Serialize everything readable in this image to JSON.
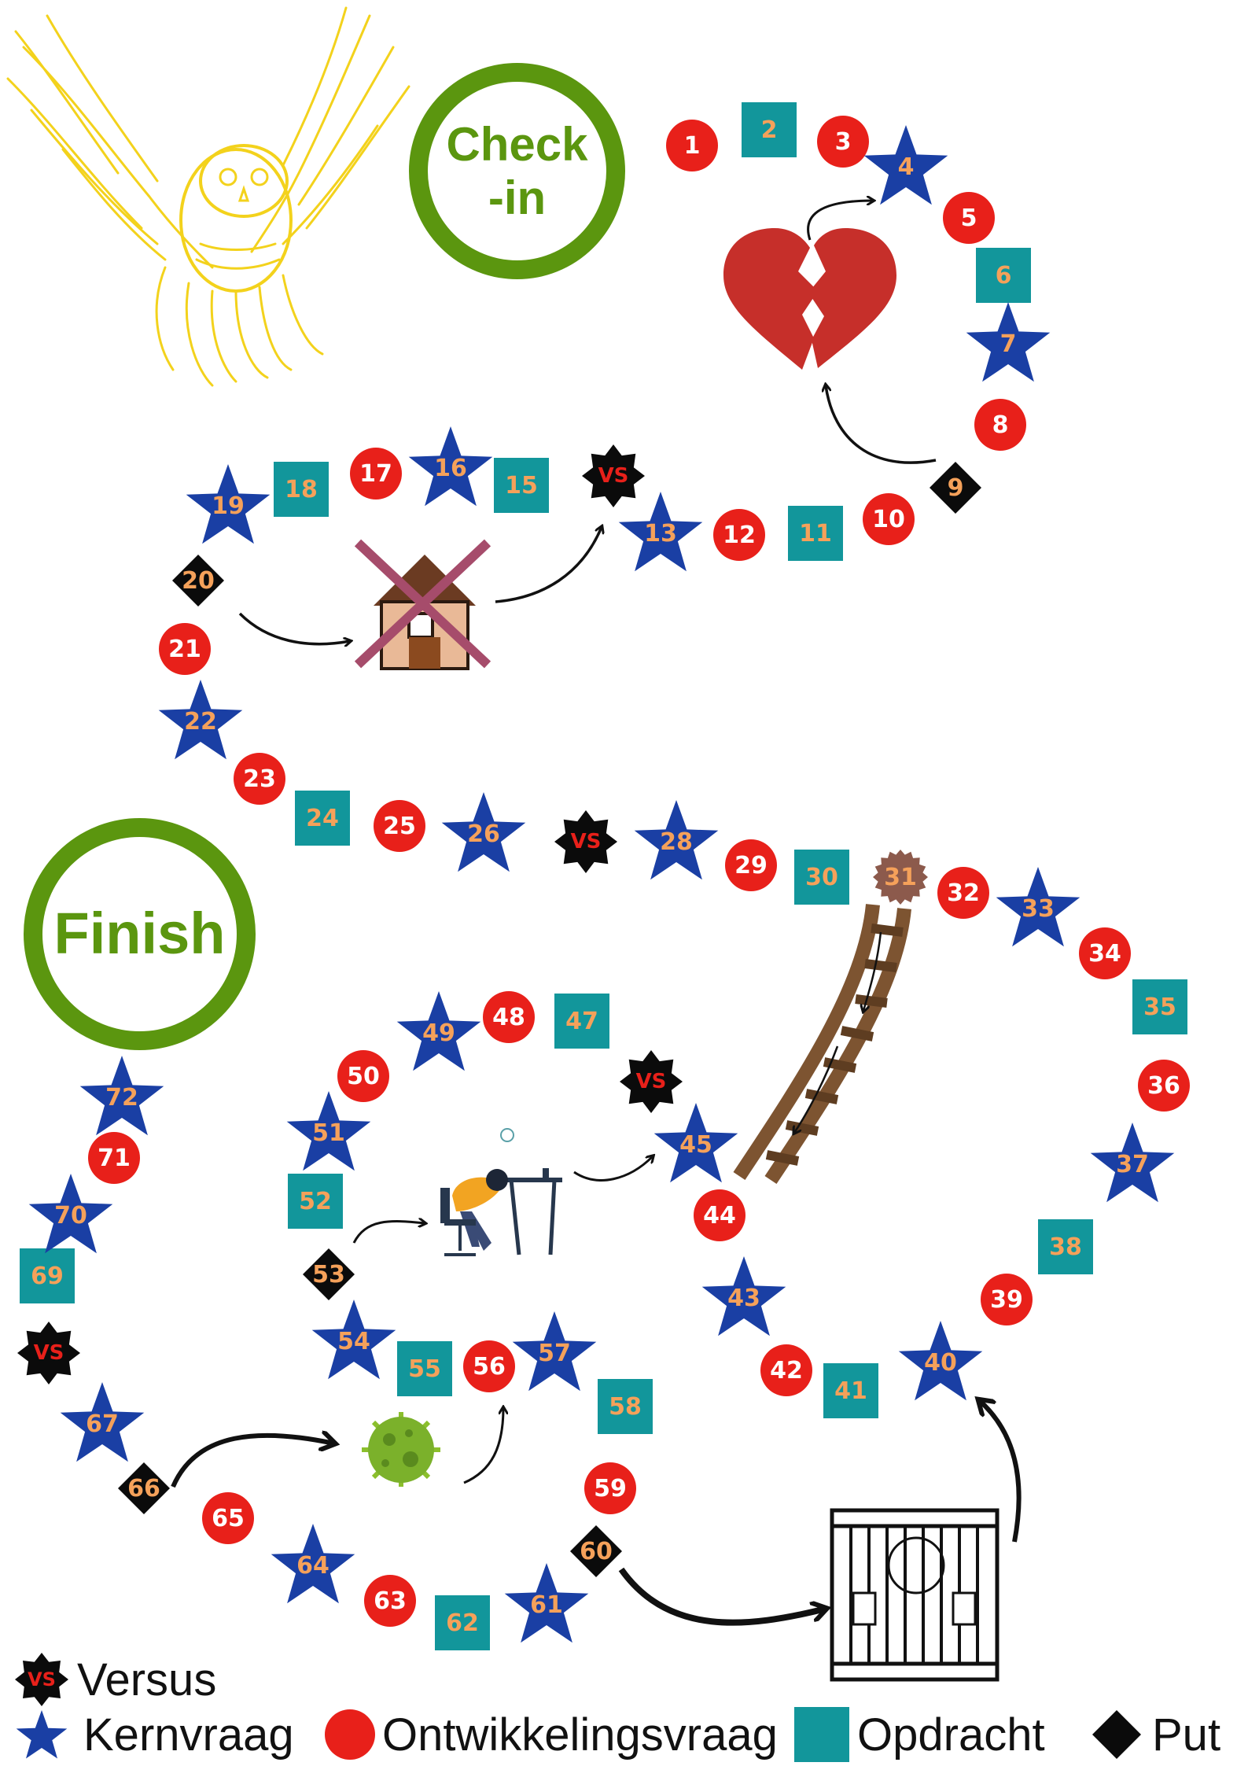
{
  "labels": {
    "check_in": "Check-in",
    "finish": "Finish"
  },
  "colors": {
    "red_circle": "#e8201a",
    "teal_square": "#12969b",
    "blue_star": "#1a3fa4",
    "black": "#0b0b0b",
    "ring_green": "#5b960f",
    "number_orange": "#f5a15a",
    "owl_yellow": "#f3d21c"
  },
  "legend": {
    "versus": "Versus",
    "kernvraag": "Kernvraag",
    "ontwikkelingsvraag": "Ontwikkelingsvraag",
    "opdracht": "Opdracht",
    "put": "Put",
    "vs_icon_text": "VS"
  },
  "tiles": [
    {
      "n": "1",
      "t": "circle"
    },
    {
      "n": "2",
      "t": "square"
    },
    {
      "n": "3",
      "t": "circle"
    },
    {
      "n": "4",
      "t": "star"
    },
    {
      "n": "5",
      "t": "circle"
    },
    {
      "n": "6",
      "t": "square"
    },
    {
      "n": "7",
      "t": "star"
    },
    {
      "n": "8",
      "t": "circle"
    },
    {
      "n": "9",
      "t": "diamond"
    },
    {
      "n": "10",
      "t": "circle"
    },
    {
      "n": "11",
      "t": "square"
    },
    {
      "n": "12",
      "t": "circle"
    },
    {
      "n": "13",
      "t": "star"
    },
    {
      "n": "VS",
      "t": "versus"
    },
    {
      "n": "15",
      "t": "square"
    },
    {
      "n": "16",
      "t": "star"
    },
    {
      "n": "17",
      "t": "circle"
    },
    {
      "n": "18",
      "t": "square"
    },
    {
      "n": "19",
      "t": "star"
    },
    {
      "n": "20",
      "t": "diamond"
    },
    {
      "n": "21",
      "t": "circle"
    },
    {
      "n": "22",
      "t": "star"
    },
    {
      "n": "23",
      "t": "circle"
    },
    {
      "n": "24",
      "t": "square"
    },
    {
      "n": "25",
      "t": "circle"
    },
    {
      "n": "26",
      "t": "star"
    },
    {
      "n": "VS",
      "t": "versus"
    },
    {
      "n": "28",
      "t": "star"
    },
    {
      "n": "29",
      "t": "circle"
    },
    {
      "n": "30",
      "t": "square"
    },
    {
      "n": "31",
      "t": "ladder"
    },
    {
      "n": "32",
      "t": "circle"
    },
    {
      "n": "33",
      "t": "star"
    },
    {
      "n": "34",
      "t": "circle"
    },
    {
      "n": "35",
      "t": "square"
    },
    {
      "n": "36",
      "t": "circle"
    },
    {
      "n": "37",
      "t": "star"
    },
    {
      "n": "38",
      "t": "square"
    },
    {
      "n": "39",
      "t": "circle"
    },
    {
      "n": "40",
      "t": "star"
    },
    {
      "n": "41",
      "t": "square"
    },
    {
      "n": "42",
      "t": "circle"
    },
    {
      "n": "43",
      "t": "star"
    },
    {
      "n": "44",
      "t": "circle"
    },
    {
      "n": "45",
      "t": "star"
    },
    {
      "n": "VS",
      "t": "versus"
    },
    {
      "n": "47",
      "t": "square"
    },
    {
      "n": "48",
      "t": "circle"
    },
    {
      "n": "49",
      "t": "star"
    },
    {
      "n": "50",
      "t": "circle"
    },
    {
      "n": "51",
      "t": "star"
    },
    {
      "n": "52",
      "t": "square"
    },
    {
      "n": "53",
      "t": "diamond"
    },
    {
      "n": "54",
      "t": "star"
    },
    {
      "n": "55",
      "t": "square"
    },
    {
      "n": "56",
      "t": "circle"
    },
    {
      "n": "57",
      "t": "star"
    },
    {
      "n": "58",
      "t": "square"
    },
    {
      "n": "59",
      "t": "circle"
    },
    {
      "n": "60",
      "t": "diamond"
    },
    {
      "n": "61",
      "t": "star"
    },
    {
      "n": "62",
      "t": "square"
    },
    {
      "n": "63",
      "t": "circle"
    },
    {
      "n": "64",
      "t": "star"
    },
    {
      "n": "65",
      "t": "circle"
    },
    {
      "n": "66",
      "t": "diamond"
    },
    {
      "n": "67",
      "t": "star"
    },
    {
      "n": "VS",
      "t": "versus"
    },
    {
      "n": "69",
      "t": "square"
    },
    {
      "n": "70",
      "t": "star"
    },
    {
      "n": "71",
      "t": "circle"
    },
    {
      "n": "72",
      "t": "star"
    }
  ]
}
